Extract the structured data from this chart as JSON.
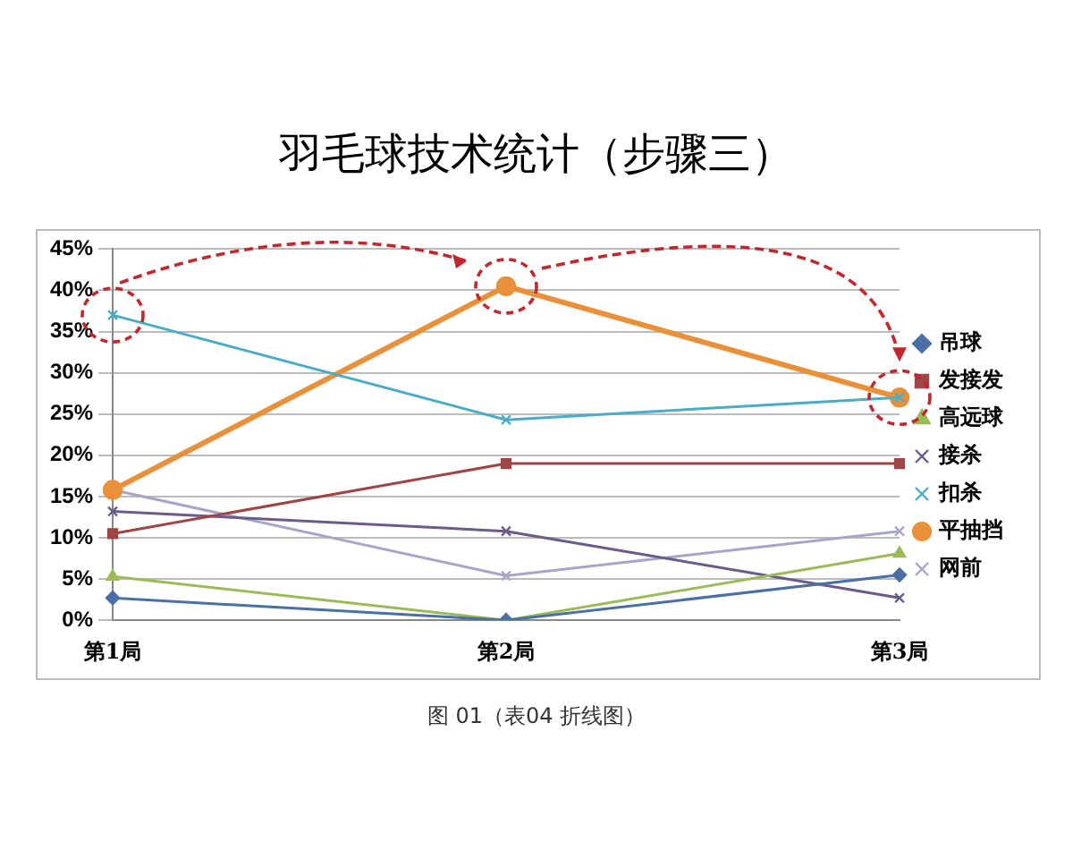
{
  "chart_data": {
    "type": "line",
    "title": "羽毛球技术统计（步骤三）",
    "categories": [
      "第1局",
      "第2局",
      "第3局"
    ],
    "series": [
      {
        "name": "吊球",
        "color": "#4a6fa5",
        "marker": "diamond",
        "values": [
          2.7,
          0,
          5.5
        ]
      },
      {
        "name": "发接发",
        "color": "#a04545",
        "marker": "square",
        "values": [
          10.5,
          19,
          19
        ]
      },
      {
        "name": "高远球",
        "color": "#9bbb59",
        "marker": "triangle",
        "values": [
          5.3,
          0,
          8.1
        ]
      },
      {
        "name": "接杀",
        "color": "#6b5b8a",
        "marker": "cross",
        "values": [
          13.2,
          10.8,
          2.7
        ]
      },
      {
        "name": "扣杀",
        "color": "#4bacc6",
        "marker": "cross",
        "values": [
          37,
          24.3,
          27
        ]
      },
      {
        "name": "平抽挡",
        "color": "#e8913a",
        "marker": "circle",
        "values": [
          15.8,
          40.5,
          27
        ]
      },
      {
        "name": "网前",
        "color": "#a6a6c8",
        "marker": "cross",
        "values": [
          15.8,
          5.4,
          10.8
        ]
      }
    ],
    "ylim": [
      0,
      45
    ],
    "yticks": [
      {
        "value": 0,
        "label": "0%"
      },
      {
        "value": 5,
        "label": "5%"
      },
      {
        "value": 10,
        "label": "10%"
      },
      {
        "value": 15,
        "label": "15%"
      },
      {
        "value": 20,
        "label": "20%"
      },
      {
        "value": 25,
        "label": "25%"
      },
      {
        "value": 30,
        "label": "30%"
      },
      {
        "value": 35,
        "label": "35%"
      },
      {
        "value": 40,
        "label": "40%"
      },
      {
        "value": 45,
        "label": "45%"
      }
    ],
    "grid": "y",
    "legend": "right",
    "annotations": [
      "图 01（表04 折线图）"
    ]
  }
}
